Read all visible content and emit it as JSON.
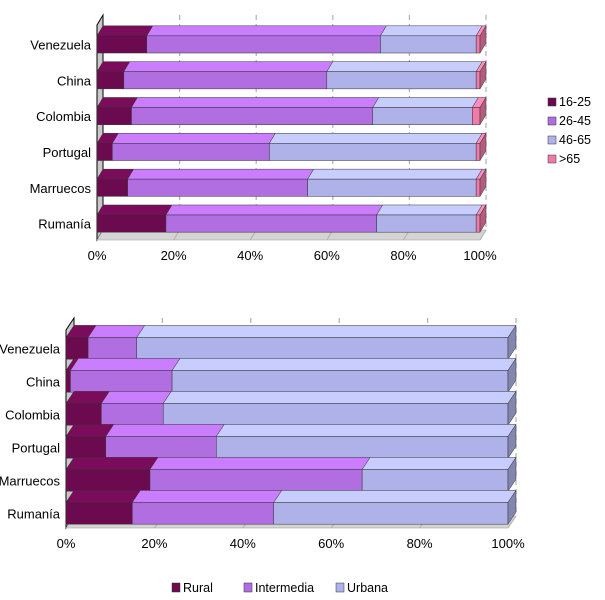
{
  "chart_data": [
    {
      "type": "bar",
      "orientation": "horizontal",
      "stacking": "percent",
      "categories": [
        "Venezuela",
        "China",
        "Colombia",
        "Portugal",
        "Marruecos",
        "Rumanía"
      ],
      "series": [
        {
          "name": "16-25",
          "color": "#6b0a4f",
          "values": [
            13,
            7,
            9,
            4,
            8,
            18
          ]
        },
        {
          "name": "26-45",
          "color": "#b06ee0",
          "values": [
            61,
            53,
            63,
            41,
            47,
            55
          ]
        },
        {
          "name": "46-65",
          "color": "#aeb2e8",
          "values": [
            25,
            39,
            26,
            54,
            44,
            26
          ]
        },
        {
          "name": ">65",
          "color": "#f07aa8",
          "values": [
            1,
            1,
            2,
            1,
            1,
            1
          ]
        }
      ],
      "xlim": [
        0,
        100
      ],
      "x_ticks": [
        "0%",
        "20%",
        "40%",
        "60%",
        "80%",
        "100%"
      ],
      "grid": "vertical dashed",
      "legend": "right"
    },
    {
      "type": "bar",
      "orientation": "horizontal",
      "stacking": "percent",
      "categories": [
        "Venezuela",
        "China",
        "Colombia",
        "Portugal",
        "Marruecos",
        "Rumanía"
      ],
      "series": [
        {
          "name": "Rural",
          "color": "#6b0a4f",
          "values": [
            5,
            1,
            8,
            9,
            19,
            15
          ]
        },
        {
          "name": "Intermedia",
          "color": "#b06ee0",
          "values": [
            11,
            23,
            14,
            25,
            48,
            32
          ]
        },
        {
          "name": "Urbana",
          "color": "#aeb2e8",
          "values": [
            84,
            76,
            78,
            66,
            33,
            53
          ]
        }
      ],
      "xlim": [
        0,
        100
      ],
      "x_ticks": [
        "0%",
        "20%",
        "40%",
        "60%",
        "80%",
        "100%"
      ],
      "grid": "vertical dashed",
      "legend": "bottom"
    }
  ]
}
